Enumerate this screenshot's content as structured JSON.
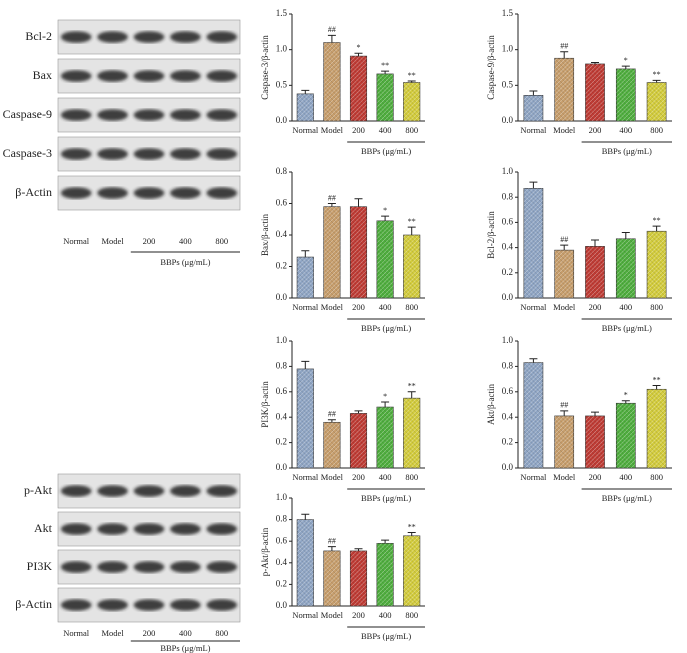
{
  "blots": [
    {
      "rows": [
        "Bcl-2",
        "Bax",
        "Caspase-9",
        "Caspase-3",
        "β-Actin"
      ],
      "lanes": [
        "Normal",
        "Model",
        "200",
        "400",
        "800"
      ],
      "xlabel": "BBPs (μg/mL)"
    },
    {
      "rows": [
        "p-Akt",
        "Akt",
        "PI3K",
        "β-Actin"
      ],
      "lanes": [
        "Normal",
        "Model",
        "200",
        "400",
        "800"
      ],
      "xlabel": "BBPs (μg/mL)"
    }
  ],
  "chart_data": [
    {
      "type": "bar",
      "ylabel": "Caspase-3/β-actin",
      "xlabel": "BBPs (μg/mL)",
      "categories": [
        "Normal",
        "Model",
        "200",
        "400",
        "800"
      ],
      "values": [
        0.38,
        1.1,
        0.91,
        0.66,
        0.54
      ],
      "errors": [
        0.05,
        0.1,
        0.04,
        0.04,
        0.02
      ],
      "annotations": [
        null,
        "##",
        "*",
        "**",
        "**"
      ],
      "colors": [
        "#8fa5c4",
        "#c79e6c",
        "#bf3b34",
        "#4fae3e",
        "#d3cc3c"
      ],
      "ylim": [
        0,
        1.5
      ],
      "yticks": [
        {
          "value": 0,
          "label": "0.0"
        },
        0.5,
        {
          "value": 1,
          "label": "1.0"
        },
        1.5
      ]
    },
    {
      "type": "bar",
      "ylabel": "Caspase-9/β-actin",
      "xlabel": "BBPs (μg/mL)",
      "categories": [
        "Normal",
        "Model",
        "200",
        "400",
        "800"
      ],
      "values": [
        0.36,
        0.88,
        0.8,
        0.73,
        0.54
      ],
      "errors": [
        0.06,
        0.09,
        0.02,
        0.04,
        0.03
      ],
      "annotations": [
        null,
        "##",
        null,
        "*",
        "**"
      ],
      "colors": [
        "#8fa5c4",
        "#c79e6c",
        "#bf3b34",
        "#4fae3e",
        "#d3cc3c"
      ],
      "ylim": [
        0,
        1.5
      ],
      "yticks": [
        {
          "value": 0,
          "label": "0.0"
        },
        0.5,
        {
          "value": 1,
          "label": "1.0"
        },
        1.5
      ]
    },
    {
      "type": "bar",
      "ylabel": "Bax/β-actin",
      "xlabel": "BBPs (μg/mL)",
      "categories": [
        "Normal",
        "Model",
        "200",
        "400",
        "800"
      ],
      "values": [
        0.26,
        0.58,
        0.58,
        0.49,
        0.4
      ],
      "errors": [
        0.04,
        0.02,
        0.05,
        0.03,
        0.05
      ],
      "annotations": [
        null,
        "##",
        null,
        "*",
        "**"
      ],
      "colors": [
        "#8fa5c4",
        "#c79e6c",
        "#bf3b34",
        "#4fae3e",
        "#d3cc3c"
      ],
      "ylim": [
        0,
        0.8
      ],
      "yticks": [
        {
          "value": 0,
          "label": "0.0"
        },
        0.2,
        0.4,
        0.6,
        0.8
      ]
    },
    {
      "type": "bar",
      "ylabel": "Bcl-2/β-actin",
      "xlabel": "BBPs (μg/mL)",
      "categories": [
        "Normal",
        "Model",
        "200",
        "400",
        "800"
      ],
      "values": [
        0.87,
        0.38,
        0.41,
        0.47,
        0.53
      ],
      "errors": [
        0.05,
        0.04,
        0.05,
        0.05,
        0.04
      ],
      "annotations": [
        null,
        "##",
        null,
        null,
        "**"
      ],
      "colors": [
        "#8fa5c4",
        "#c79e6c",
        "#bf3b34",
        "#4fae3e",
        "#d3cc3c"
      ],
      "ylim": [
        0,
        1
      ],
      "yticks": [
        {
          "value": 0,
          "label": "0.0"
        },
        0.2,
        0.4,
        0.6,
        0.8,
        {
          "value": 1,
          "label": "1.0"
        }
      ]
    },
    {
      "type": "bar",
      "ylabel": "PI3K/β-actin",
      "xlabel": "BBPs (μg/mL)",
      "categories": [
        "Normal",
        "Model",
        "200",
        "400",
        "800"
      ],
      "values": [
        0.78,
        0.36,
        0.43,
        0.48,
        0.55
      ],
      "errors": [
        0.06,
        0.02,
        0.02,
        0.04,
        0.05
      ],
      "annotations": [
        null,
        "##",
        null,
        "*",
        "**"
      ],
      "colors": [
        "#8fa5c4",
        "#c79e6c",
        "#bf3b34",
        "#4fae3e",
        "#d3cc3c"
      ],
      "ylim": [
        0,
        1
      ],
      "yticks": [
        {
          "value": 0,
          "label": "0.0"
        },
        0.2,
        0.4,
        0.6,
        0.8,
        {
          "value": 1,
          "label": "1.0"
        }
      ]
    },
    {
      "type": "bar",
      "ylabel": "Akt/β-actin",
      "xlabel": "BBPs (μg/mL)",
      "categories": [
        "Normal",
        "Model",
        "200",
        "400",
        "800"
      ],
      "values": [
        0.83,
        0.41,
        0.41,
        0.51,
        0.62
      ],
      "errors": [
        0.03,
        0.04,
        0.03,
        0.02,
        0.03
      ],
      "annotations": [
        null,
        "##",
        null,
        "*",
        "**"
      ],
      "colors": [
        "#8fa5c4",
        "#c79e6c",
        "#bf3b34",
        "#4fae3e",
        "#d3cc3c"
      ],
      "ylim": [
        0,
        1
      ],
      "yticks": [
        {
          "value": 0,
          "label": "0.0"
        },
        0.2,
        0.4,
        0.6,
        0.8,
        {
          "value": 1,
          "label": "1.0"
        }
      ]
    },
    {
      "type": "bar",
      "ylabel": "p-Akt/β-actin",
      "xlabel": "BBPs (μg/mL)",
      "categories": [
        "Normal",
        "Model",
        "200",
        "400",
        "800"
      ],
      "values": [
        0.8,
        0.51,
        0.51,
        0.58,
        0.65
      ],
      "errors": [
        0.05,
        0.04,
        0.02,
        0.03,
        0.03
      ],
      "annotations": [
        null,
        "##",
        null,
        null,
        "**"
      ],
      "colors": [
        "#8fa5c4",
        "#c79e6c",
        "#bf3b34",
        "#4fae3e",
        "#d3cc3c"
      ],
      "ylim": [
        0,
        1
      ],
      "yticks": [
        {
          "value": 0,
          "label": "0.0"
        },
        0.2,
        0.4,
        0.6,
        0.8,
        {
          "value": 1,
          "label": "1.0"
        }
      ]
    }
  ]
}
